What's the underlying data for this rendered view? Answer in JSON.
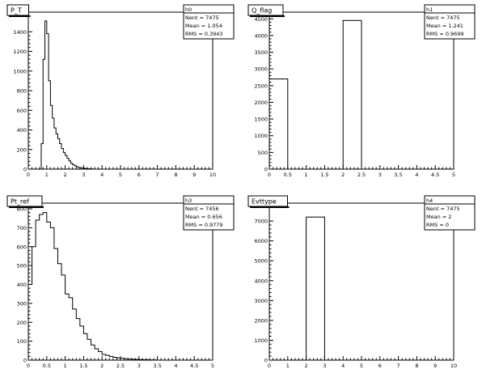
{
  "chart_data": [
    {
      "type": "bar",
      "title": "P_T",
      "stats": {
        "name": "h0",
        "entries": "Nent = 7475",
        "mean": "Mean = 1.054",
        "rms": "RMS = 0.3943"
      },
      "xlim": [
        0,
        10
      ],
      "ylim": [
        0,
        1600
      ],
      "xticks": [
        "0",
        "1",
        "2",
        "3",
        "4",
        "5",
        "6",
        "7",
        "8",
        "9",
        "10"
      ],
      "yticks": [
        "0",
        "200",
        "400",
        "600",
        "800",
        "1000",
        "1200",
        "1400"
      ],
      "ytick_values": [
        0,
        200,
        400,
        600,
        800,
        1000,
        1200,
        1400
      ],
      "xtick_values": [
        0,
        1,
        2,
        3,
        4,
        5,
        6,
        7,
        8,
        9,
        10
      ],
      "bin_width": 0.1,
      "bin_start": 0.5,
      "values": [
        0,
        0,
        260,
        1120,
        1510,
        1380,
        900,
        650,
        520,
        420,
        360,
        310,
        260,
        210,
        170,
        140,
        110,
        85,
        60,
        45,
        35,
        25,
        18,
        14,
        10,
        8,
        6,
        4,
        3,
        2,
        1
      ]
    },
    {
      "type": "bar",
      "title": "Q_flag",
      "stats": {
        "name": "h1",
        "entries": "Nent = 7475",
        "mean": "Mean = 1.241",
        "rms": "RMS = 0.9699"
      },
      "xlim": [
        0,
        5
      ],
      "ylim": [
        0,
        4700
      ],
      "xticks": [
        "0",
        "0.5",
        "1",
        "1.5",
        "2",
        "2.5",
        "3",
        "3.5",
        "4",
        "4.5",
        "5"
      ],
      "xtick_values": [
        0,
        0.5,
        1,
        1.5,
        2,
        2.5,
        3,
        3.5,
        4,
        4.5,
        5
      ],
      "yticks": [
        "0",
        "500",
        "1000",
        "1500",
        "2000",
        "2500",
        "3000",
        "3500",
        "4000",
        "4500"
      ],
      "ytick_values": [
        0,
        500,
        1000,
        1500,
        2000,
        2500,
        3000,
        3500,
        4000,
        4500
      ],
      "bins": [
        {
          "x0": 0,
          "x1": 0.5,
          "value": 2700
        },
        {
          "x0": 2,
          "x1": 2.5,
          "value": 4450
        }
      ]
    },
    {
      "type": "bar",
      "title": "Pt_ref",
      "stats": {
        "name": "h3",
        "entries": "Nent = 7456",
        "mean": "Mean = 0.656",
        "rms": "RMS = 0.9779"
      },
      "xlim": [
        0,
        5
      ],
      "ylim": [
        0,
        830
      ],
      "xticks": [
        "0",
        "0.5",
        "1",
        "1.5",
        "2",
        "2.5",
        "3",
        "3.5",
        "4",
        "4.5",
        "5"
      ],
      "xtick_values": [
        0,
        0.5,
        1,
        1.5,
        2,
        2.5,
        3,
        3.5,
        4,
        4.5,
        5
      ],
      "yticks": [
        "0",
        "100",
        "200",
        "300",
        "400",
        "500",
        "600",
        "700",
        "800"
      ],
      "ytick_values": [
        0,
        100,
        200,
        300,
        400,
        500,
        600,
        700,
        800
      ],
      "bin_width": 0.1,
      "bin_start": 0,
      "values": [
        400,
        600,
        740,
        770,
        780,
        730,
        700,
        590,
        510,
        450,
        350,
        330,
        270,
        220,
        180,
        140,
        110,
        80,
        60,
        45,
        30,
        25,
        20,
        15,
        12,
        10,
        8,
        6,
        5,
        4,
        3,
        2,
        2,
        1,
        1
      ]
    },
    {
      "type": "bar",
      "title": "Evttype",
      "stats": {
        "name": "h4",
        "entries": "Nent = 7475",
        "mean": "Mean = 2",
        "rms": "RMS = 0"
      },
      "xlim": [
        0,
        10
      ],
      "ylim": [
        0,
        7900
      ],
      "xticks": [
        "0",
        "1",
        "2",
        "3",
        "4",
        "5",
        "6",
        "7",
        "8",
        "9",
        "10"
      ],
      "xtick_values": [
        0,
        1,
        2,
        3,
        4,
        5,
        6,
        7,
        8,
        9,
        10
      ],
      "yticks": [
        "0",
        "1000",
        "2000",
        "3000",
        "4000",
        "5000",
        "6000",
        "7000"
      ],
      "ytick_values": [
        0,
        1000,
        2000,
        3000,
        4000,
        5000,
        6000,
        7000
      ],
      "bins": [
        {
          "x0": 2,
          "x1": 3,
          "value": 7200
        }
      ]
    }
  ]
}
